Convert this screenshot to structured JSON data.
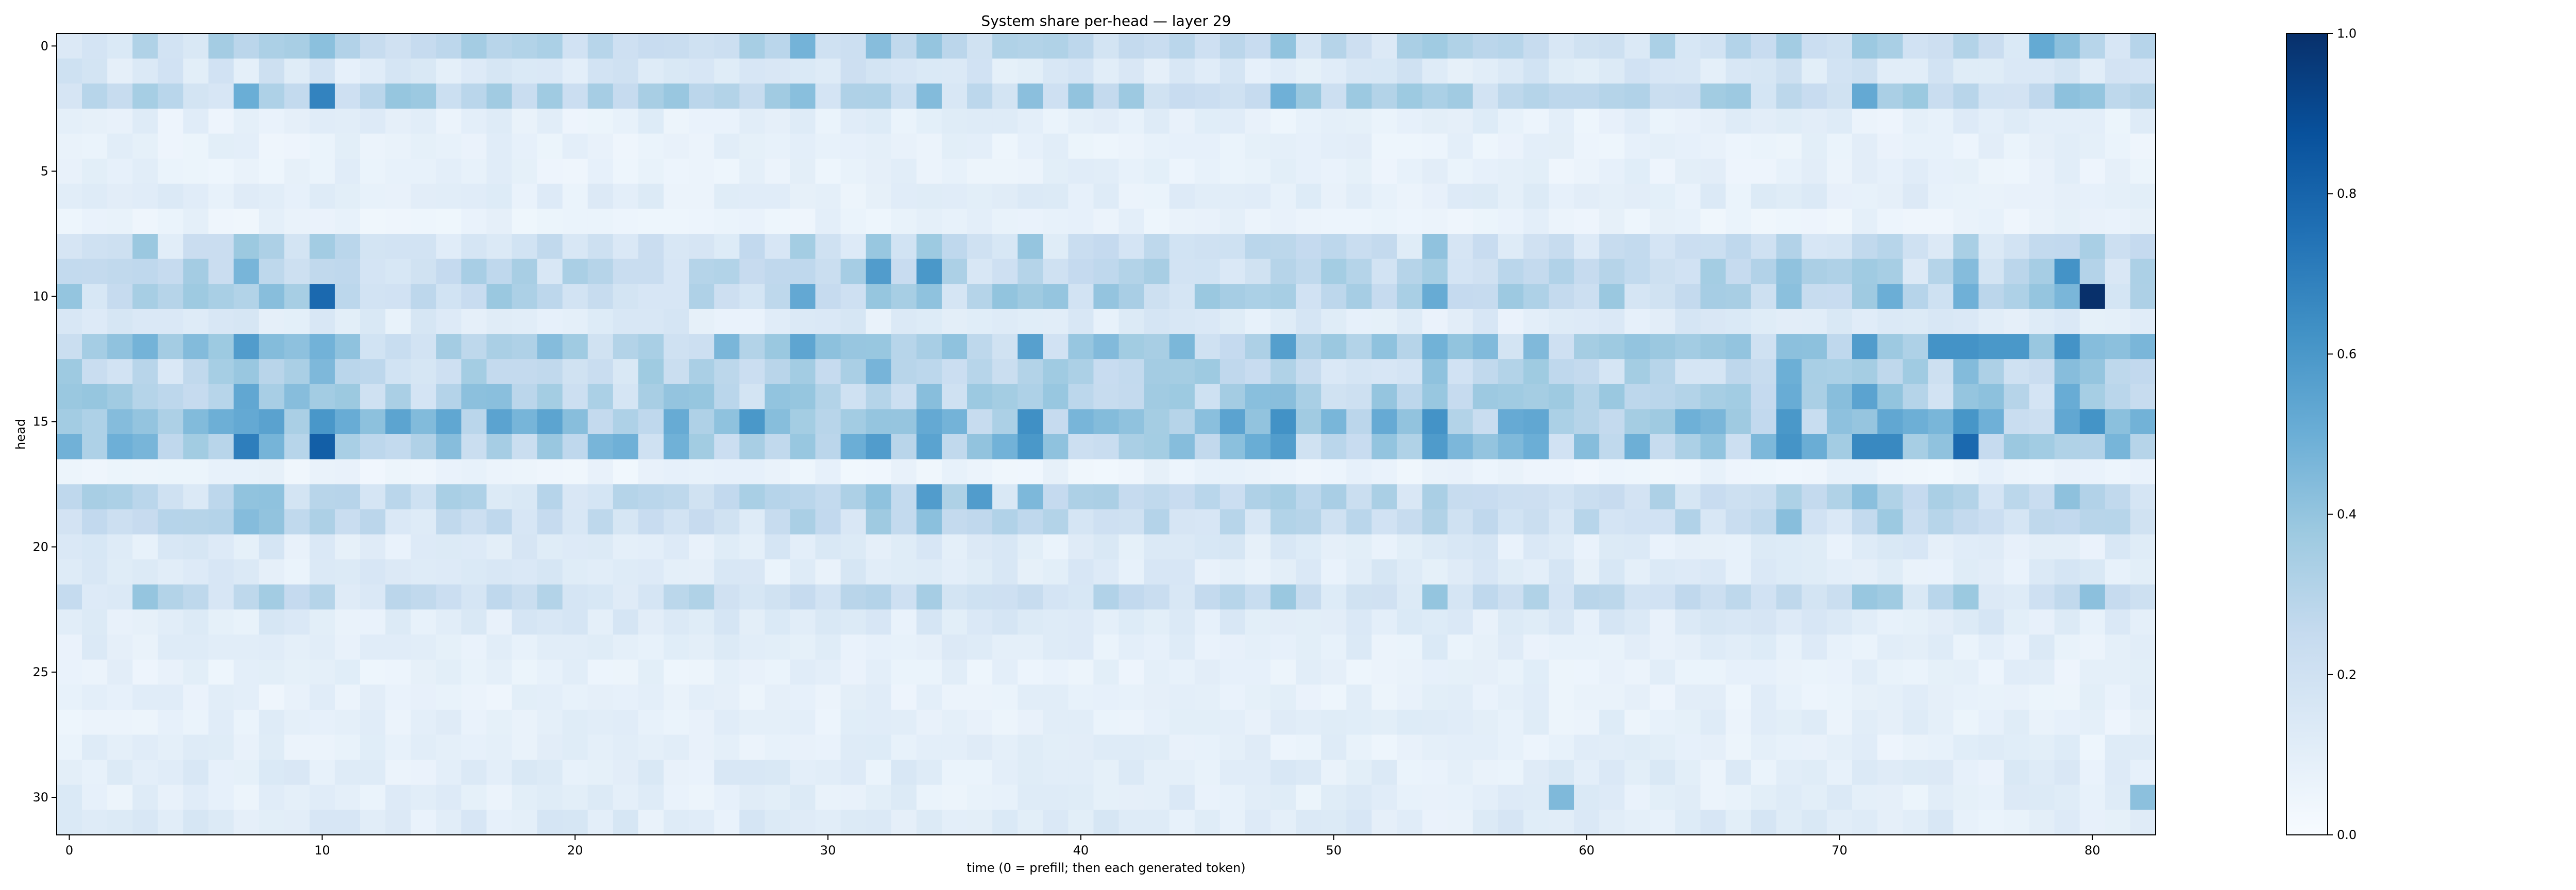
{
  "chart_data": {
    "type": "heatmap",
    "title": "System share per-head — layer 29",
    "xlabel": "time (0 = prefill; then each generated token)",
    "ylabel": "head",
    "x_ticks": [
      0,
      10,
      20,
      30,
      40,
      50,
      60,
      70,
      80
    ],
    "y_ticks": [
      0,
      5,
      10,
      15,
      20,
      25,
      30
    ],
    "colorbar_ticks": [
      "0.0",
      "0.2",
      "0.4",
      "0.6",
      "0.8",
      "1.0"
    ],
    "colormap": "Blues",
    "vmin": 0.0,
    "vmax": 1.0,
    "n_heads": 32,
    "n_timesteps": 83,
    "xlim": [
      -0.5,
      82.5
    ],
    "ylim": [
      31.5,
      -0.5
    ],
    "row_profile": {
      "heads": [
        0,
        1,
        2,
        3,
        4,
        5,
        6,
        7,
        8,
        9,
        10,
        11,
        12,
        13,
        14,
        15,
        16,
        17,
        18,
        19,
        20,
        21,
        22,
        23,
        24,
        25,
        26,
        27,
        28,
        29,
        30,
        31
      ],
      "typical_share": [
        0.25,
        0.15,
        0.28,
        0.09,
        0.08,
        0.08,
        0.1,
        0.07,
        0.2,
        0.25,
        0.28,
        0.12,
        0.32,
        0.26,
        0.3,
        0.38,
        0.35,
        0.06,
        0.24,
        0.22,
        0.12,
        0.12,
        0.22,
        0.12,
        0.1,
        0.08,
        0.08,
        0.09,
        0.09,
        0.11,
        0.1,
        0.12
      ]
    },
    "notable_cells": [
      {
        "head": 10,
        "time": 80,
        "value": 1.0
      },
      {
        "head": 16,
        "time": 10,
        "value": 0.82
      },
      {
        "head": 10,
        "time": 10,
        "value": 0.78
      },
      {
        "head": 16,
        "time": 75,
        "value": 0.78
      },
      {
        "head": 2,
        "time": 10,
        "value": 0.68
      },
      {
        "head": 16,
        "time": 7,
        "value": 0.7
      },
      {
        "head": 16,
        "time": 71,
        "value": 0.66
      },
      {
        "head": 16,
        "time": 72,
        "value": 0.66
      },
      {
        "head": 12,
        "time": 74,
        "value": 0.62
      },
      {
        "head": 12,
        "time": 75,
        "value": 0.62
      },
      {
        "head": 12,
        "time": 76,
        "value": 0.6
      },
      {
        "head": 12,
        "time": 77,
        "value": 0.6
      },
      {
        "head": 12,
        "time": 79,
        "value": 0.62
      },
      {
        "head": 12,
        "time": 71,
        "value": 0.58
      },
      {
        "head": 9,
        "time": 79,
        "value": 0.62
      },
      {
        "head": 15,
        "time": 54,
        "value": 0.62
      },
      {
        "head": 15,
        "time": 27,
        "value": 0.6
      },
      {
        "head": 9,
        "time": 34,
        "value": 0.6
      },
      {
        "head": 9,
        "time": 32,
        "value": 0.58
      },
      {
        "head": 12,
        "time": 7,
        "value": 0.58
      },
      {
        "head": 16,
        "time": 32,
        "value": 0.58
      },
      {
        "head": 16,
        "time": 38,
        "value": 0.6
      },
      {
        "head": 18,
        "time": 34,
        "value": 0.58
      },
      {
        "head": 18,
        "time": 36,
        "value": 0.58
      },
      {
        "head": 0,
        "time": 78,
        "value": 0.52
      },
      {
        "head": 30,
        "time": 59,
        "value": 0.45
      },
      {
        "head": 30,
        "time": 82,
        "value": 0.42
      }
    ]
  }
}
